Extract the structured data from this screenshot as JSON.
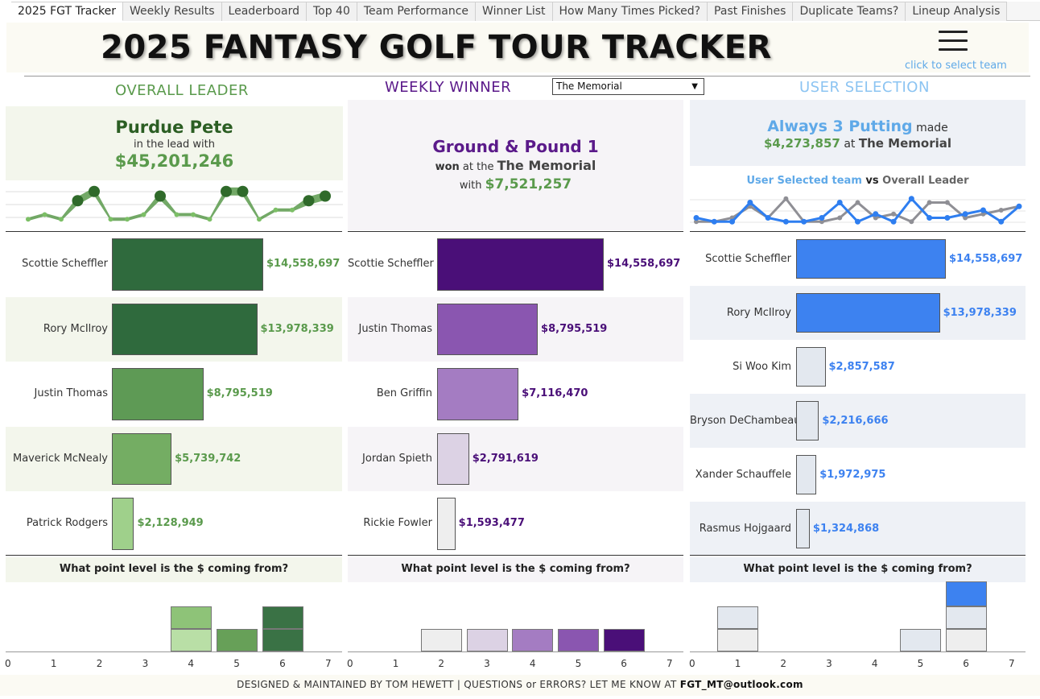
{
  "tabs": [
    "2025 FGT Tracker",
    "Weekly Results",
    "Leaderboard",
    "Top 40",
    "Team Performance",
    "Winner List",
    "How Many Times Picked?",
    "Past Finishes",
    "Duplicate Teams?",
    "Lineup Analysis"
  ],
  "title": "2025 FANTASY GOLF TOUR TRACKER",
  "click_team": "click to select team",
  "sections": {
    "overall": "OVERALL LEADER",
    "weekly": "WEEKLY WINNER",
    "user": "USER SELECTION"
  },
  "dropdown_value": "The Memorial",
  "overall": {
    "name": "Purdue Pete",
    "sub": "in the lead with",
    "amount": "$45,201,246",
    "spark": [
      1,
      2,
      1,
      5,
      7,
      1,
      1,
      2,
      6,
      2,
      2,
      1,
      7,
      7,
      1,
      3,
      3,
      5,
      6
    ],
    "players": [
      {
        "name": "Scottie Scheffler",
        "value": 14558697,
        "label": "$14,558,697",
        "color": "#2f6a3d"
      },
      {
        "name": "Rory McIlroy",
        "value": 13978339,
        "label": "$13,978,339",
        "color": "#2f6a3d"
      },
      {
        "name": "Justin Thomas",
        "value": 8795519,
        "label": "$8,795,519",
        "color": "#5e9a55"
      },
      {
        "name": "Maverick McNealy",
        "value": 5739742,
        "label": "$5,739,742",
        "color": "#74ad63"
      },
      {
        "name": "Patrick Rodgers",
        "value": 2128949,
        "label": "$2,128,949",
        "color": "#9fd08b"
      }
    ],
    "question": "What point level is the $ coming from?",
    "hist": [
      {
        "x": 4,
        "segments": [
          {
            "h": 1,
            "color": "#b9dfa6"
          },
          {
            "h": 1,
            "color": "#8ec378"
          }
        ]
      },
      {
        "x": 5,
        "segments": [
          {
            "h": 1,
            "color": "#67a058"
          }
        ]
      },
      {
        "x": 6,
        "segments": [
          {
            "h": 1,
            "color": "#3a7245"
          },
          {
            "h": 1,
            "color": "#3a7245"
          }
        ]
      }
    ],
    "axis": [
      "0",
      "1",
      "2",
      "3",
      "4",
      "5",
      "6",
      "7"
    ]
  },
  "weekly": {
    "name": "Ground & Pound 1",
    "won": "won",
    "at_the": "at the",
    "event": "The Memorial",
    "with": "with",
    "amount": "$7,521,257",
    "players": [
      {
        "name": "Scottie Scheffler",
        "value": 14558697,
        "label": "$14,558,697",
        "color": "#4a0f78"
      },
      {
        "name": "Justin Thomas",
        "value": 8795519,
        "label": "$8,795,519",
        "color": "#8a56b0"
      },
      {
        "name": "Ben Griffin",
        "value": 7116470,
        "label": "$7,116,470",
        "color": "#a47cc2"
      },
      {
        "name": "Jordan Spieth",
        "value": 2791619,
        "label": "$2,791,619",
        "color": "#dcd2e4"
      },
      {
        "name": "Rickie Fowler",
        "value": 1593477,
        "label": "$1,593,477",
        "color": "#eeeeee"
      }
    ],
    "question": "What point level is the $ coming from?",
    "hist": [
      {
        "x": 2,
        "segments": [
          {
            "h": 1,
            "color": "#eeeeee"
          }
        ]
      },
      {
        "x": 3,
        "segments": [
          {
            "h": 1,
            "color": "#dcd2e4"
          }
        ]
      },
      {
        "x": 4,
        "segments": [
          {
            "h": 1,
            "color": "#a47cc2"
          }
        ]
      },
      {
        "x": 5,
        "segments": [
          {
            "h": 1,
            "color": "#8a56b0"
          }
        ]
      },
      {
        "x": 6,
        "segments": [
          {
            "h": 1,
            "color": "#4a0f78"
          }
        ]
      }
    ],
    "axis": [
      "0",
      "1",
      "2",
      "3",
      "4",
      "5",
      "6",
      "7"
    ]
  },
  "user": {
    "name": "Always 3 Putting",
    "made": "made",
    "amount": "$4,273,857",
    "at": "at",
    "event": "The Memorial",
    "vs_team": "User Selected team",
    "vs": "vs",
    "vs_leader": "Overall Leader",
    "spark_user": [
      2,
      1,
      1,
      6,
      2,
      1,
      1,
      2,
      6,
      1,
      3,
      1,
      7,
      2,
      2,
      3,
      4,
      1,
      5
    ],
    "spark_leader": [
      1,
      1,
      2,
      5,
      2,
      7,
      1,
      1,
      2,
      6,
      2,
      3,
      1,
      6,
      6,
      2,
      3,
      4,
      5
    ],
    "players": [
      {
        "name": "Scottie Scheffler",
        "value": 14558697,
        "label": "$14,558,697",
        "color": "#3d82f0"
      },
      {
        "name": "Rory McIlroy",
        "value": 13978339,
        "label": "$13,978,339",
        "color": "#3d82f0"
      },
      {
        "name": "Si Woo Kim",
        "value": 2857587,
        "label": "$2,857,587",
        "color": "#e3e8ef"
      },
      {
        "name": "Bryson DeChambeau",
        "value": 2216666,
        "label": "$2,216,666",
        "color": "#e3e8ef"
      },
      {
        "name": "Xander Schauffele",
        "value": 1972975,
        "label": "$1,972,975",
        "color": "#e3e8ef"
      },
      {
        "name": "Rasmus Hojgaard",
        "value": 1324868,
        "label": "$1,324,868",
        "color": "#e3e8ef"
      }
    ],
    "question": "What point level is the $ coming from?",
    "hist": [
      {
        "x": 1,
        "segments": [
          {
            "h": 1,
            "color": "#eeeeee"
          },
          {
            "h": 1,
            "color": "#e3e8ef"
          }
        ]
      },
      {
        "x": 5,
        "segments": [
          {
            "h": 1,
            "color": "#e3e8ef"
          }
        ]
      },
      {
        "x": 6,
        "segments": [
          {
            "h": 1,
            "color": "#eeeeee"
          },
          {
            "h": 1,
            "color": "#e3e8ef"
          },
          {
            "h": 1.1,
            "color": "#3d82f0"
          }
        ]
      }
    ],
    "axis": [
      "0",
      "1",
      "2",
      "3",
      "4",
      "5",
      "6",
      "7"
    ]
  },
  "footer": {
    "text": "DESIGNED & MAINTAINED BY TOM HEWETT  |  QUESTIONS or ERRORS? LET ME KNOW AT",
    "email": "FGT_MT@outlook.com"
  },
  "colors": {
    "green": "#5a9a4c",
    "dark_green": "#2b5e23",
    "purple": "#5b1a8a",
    "blue": "#5fa9e8"
  }
}
